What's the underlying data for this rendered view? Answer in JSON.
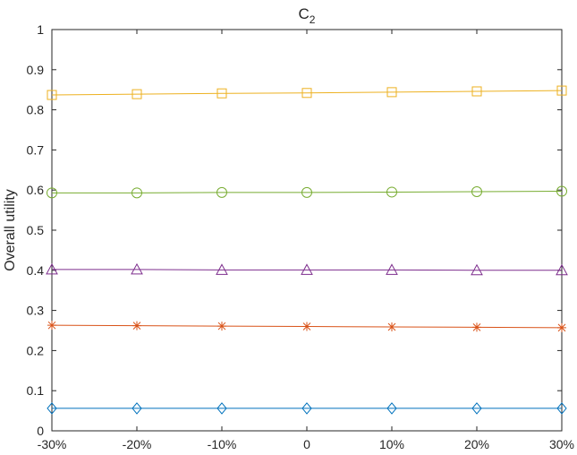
{
  "chart_data": {
    "type": "line",
    "title": "C",
    "title_subscript": "2",
    "xlabel": "",
    "ylabel": "Overall utility",
    "categories": [
      "-30%",
      "-20%",
      "-10%",
      "0",
      "10%",
      "20%",
      "30%"
    ],
    "ylim": [
      0,
      1
    ],
    "yticks": [
      "0",
      "0.1",
      "0.2",
      "0.3",
      "0.4",
      "0.5",
      "0.6",
      "0.7",
      "0.8",
      "0.9",
      "1"
    ],
    "grid": false,
    "legend": "none",
    "series": [
      {
        "values": [
          0.837,
          0.839,
          0.841,
          0.842,
          0.844,
          0.846,
          0.848
        ],
        "color": "#EDB120",
        "marker": "square"
      },
      {
        "values": [
          0.593,
          0.593,
          0.594,
          0.594,
          0.595,
          0.596,
          0.597
        ],
        "color": "#77AC30",
        "marker": "circle"
      },
      {
        "values": [
          0.402,
          0.402,
          0.401,
          0.401,
          0.401,
          0.4,
          0.4
        ],
        "color": "#7E2F8E",
        "marker": "triangle"
      },
      {
        "values": [
          0.263,
          0.262,
          0.261,
          0.26,
          0.259,
          0.258,
          0.257
        ],
        "color": "#D95319",
        "marker": "asterisk"
      },
      {
        "values": [
          0.056,
          0.056,
          0.056,
          0.056,
          0.056,
          0.056,
          0.056
        ],
        "color": "#0072BD",
        "marker": "diamond"
      }
    ]
  }
}
